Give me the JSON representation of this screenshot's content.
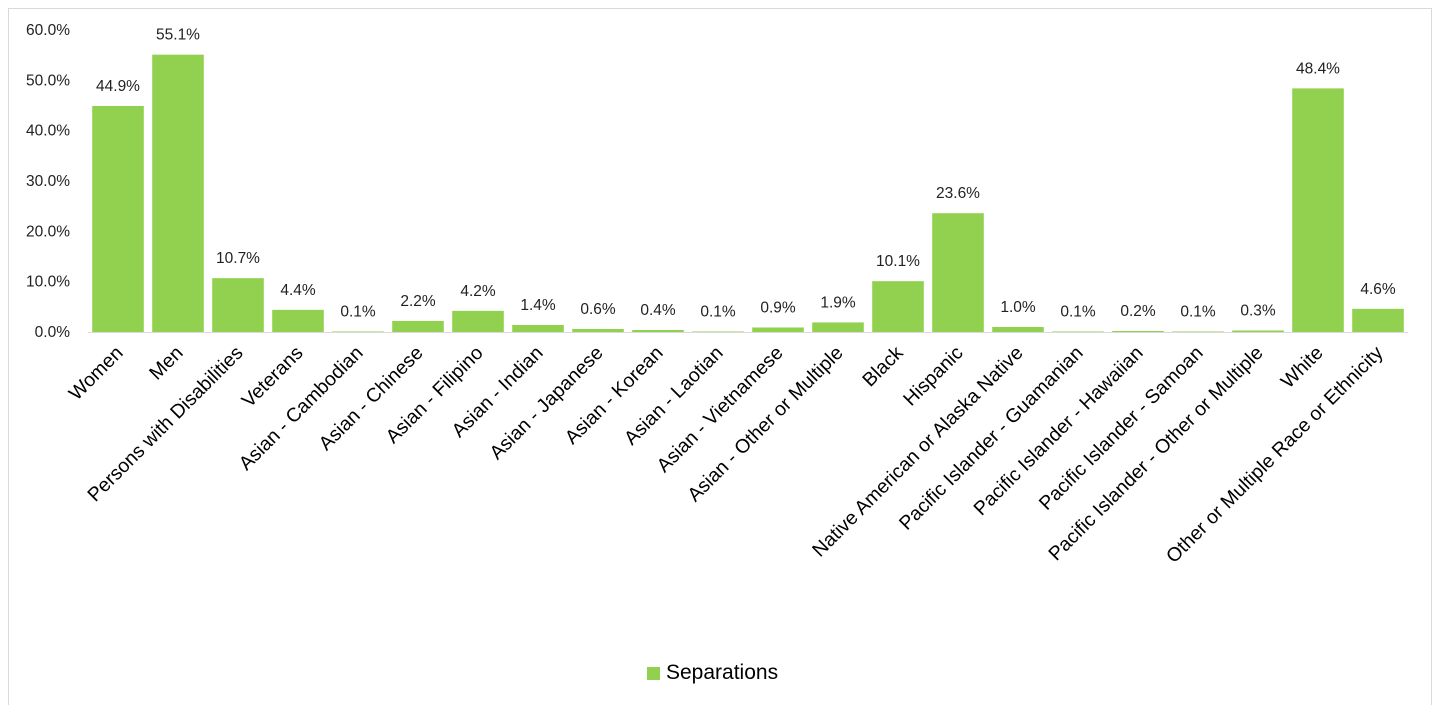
{
  "chart_data": {
    "type": "bar",
    "categories": [
      "Women",
      "Men",
      "Persons with Disabilities",
      "Veterans",
      "Asian - Cambodian",
      "Asian - Chinese",
      "Asian - Filipino",
      "Asian - Indian",
      "Asian - Japanese",
      "Asian - Korean",
      "Asian - Laotian",
      "Asian - Vietnamese",
      "Asian - Other or Multiple",
      "Black",
      "Hispanic",
      "Native American or Alaska Native",
      "Pacific Islander - Guamanian",
      "Pacific Islander - Hawaiian",
      "Pacific Islander - Samoan",
      "Pacific Islander - Other or Multiple",
      "White",
      "Other or Multiple Race or Ethnicity"
    ],
    "series": [
      {
        "name": "Separations",
        "color": "#92d050",
        "values": [
          44.9,
          55.1,
          10.7,
          4.4,
          0.1,
          2.2,
          4.2,
          1.4,
          0.6,
          0.4,
          0.1,
          0.9,
          1.9,
          10.1,
          23.6,
          1.0,
          0.1,
          0.2,
          0.1,
          0.3,
          48.4,
          4.6
        ],
        "labels": [
          "44.9%",
          "55.1%",
          "10.7%",
          "4.4%",
          "0.1%",
          "2.2%",
          "4.2%",
          "1.4%",
          "0.6%",
          "0.4%",
          "0.1%",
          "0.9%",
          "1.9%",
          "10.1%",
          "23.6%",
          "1.0%",
          "0.1%",
          "0.2%",
          "0.1%",
          "0.3%",
          "48.4%",
          "4.6%"
        ]
      }
    ],
    "ylim": [
      0,
      60
    ],
    "yticks": [
      0,
      10,
      20,
      30,
      40,
      50,
      60
    ],
    "ytick_labels": [
      "0.0%",
      "10.0%",
      "20.0%",
      "30.0%",
      "40.0%",
      "50.0%",
      "60.0%"
    ],
    "grid": false,
    "legend_position": "bottom",
    "title": "",
    "xlabel": "",
    "ylabel": ""
  },
  "legend": {
    "label": "Separations"
  }
}
